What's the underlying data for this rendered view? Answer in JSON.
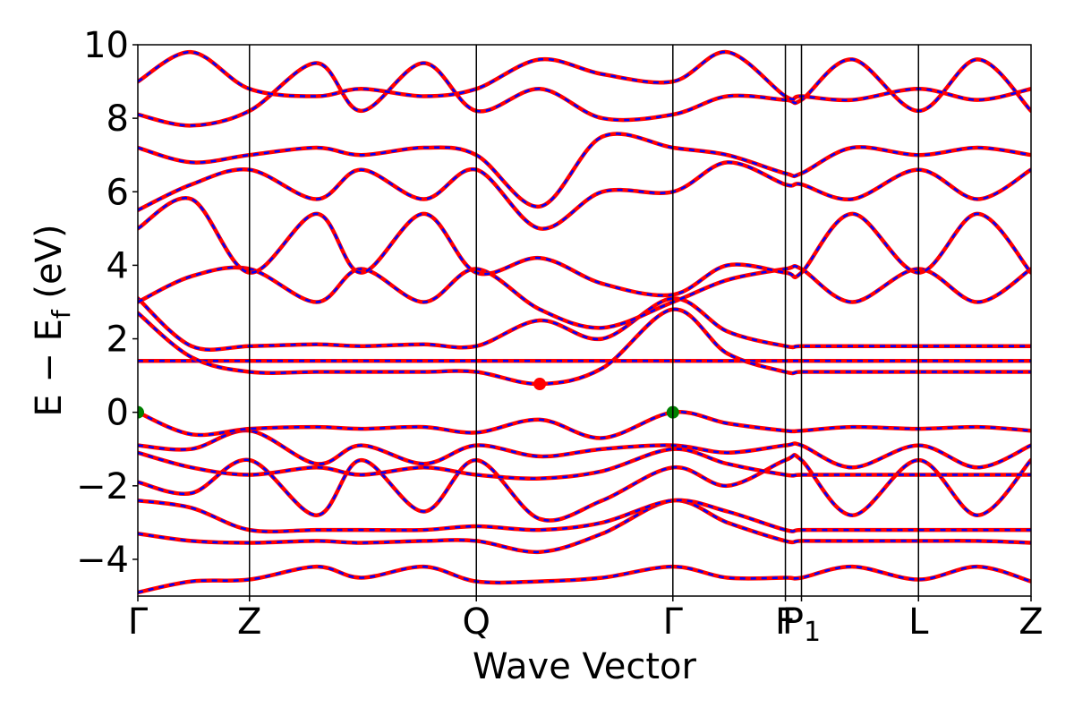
{
  "chart_data": {
    "type": "line",
    "title": "",
    "xlabel": "Wave Vector",
    "ylabel": "E − E_f (eV)",
    "ylabel_main": "E − E",
    "ylabel_sub": "f",
    "ylabel_unit": " (eV)",
    "ylim": [
      -5,
      10
    ],
    "yticks": [
      -4,
      -2,
      0,
      2,
      4,
      6,
      8,
      10
    ],
    "ytick_labels": [
      "−4",
      "−2",
      "0",
      "2",
      "4",
      "6",
      "8",
      "10"
    ],
    "xlim": [
      0,
      1
    ],
    "kpath_ticks": [
      {
        "x": 0.0,
        "label": "Γ"
      },
      {
        "x": 0.125,
        "label": "Z"
      },
      {
        "x": 0.379,
        "label": "Q"
      },
      {
        "x": 0.599,
        "label": "Γ"
      },
      {
        "x": 0.725,
        "label": "F"
      },
      {
        "x": 0.743,
        "label": "P",
        "sub": "1"
      },
      {
        "x": 0.874,
        "label": "L"
      },
      {
        "x": 1.0,
        "label": "Z"
      }
    ],
    "grid": false,
    "colors": {
      "band_solid": "#ff0000",
      "band_dashed": "#0000ff",
      "vbm_marker": "#008000",
      "cbm_marker": "#ff0000"
    },
    "markers": [
      {
        "name": "VBM",
        "x": 0.0,
        "y": 0.0,
        "color": "#008000"
      },
      {
        "name": "VBM",
        "x": 0.599,
        "y": 0.0,
        "color": "#008000"
      },
      {
        "name": "CBM",
        "x": 0.45,
        "y": 0.77,
        "color": "#ff0000"
      }
    ],
    "series": [
      {
        "x": [
          0,
          0.06,
          0.125,
          0.2,
          0.25,
          0.32,
          0.379,
          0.45,
          0.52,
          0.599,
          0.66,
          0.725,
          0.743,
          0.8,
          0.874,
          0.94,
          1.0
        ],
        "y": [
          -4.9,
          -4.6,
          -4.55,
          -4.2,
          -4.5,
          -4.2,
          -4.6,
          -4.6,
          -4.5,
          -4.2,
          -4.5,
          -4.5,
          -4.5,
          -4.2,
          -4.55,
          -4.2,
          -4.6
        ]
      },
      {
        "x": [
          0,
          0.06,
          0.125,
          0.2,
          0.25,
          0.32,
          0.379,
          0.45,
          0.52,
          0.599,
          0.66,
          0.725,
          0.743,
          0.8,
          0.874,
          0.94,
          1.0
        ],
        "y": [
          -3.3,
          -3.5,
          -3.55,
          -3.5,
          -3.55,
          -3.5,
          -3.5,
          -3.8,
          -3.3,
          -2.4,
          -3.0,
          -3.5,
          -3.5,
          -3.5,
          -3.5,
          -3.5,
          -3.55
        ]
      },
      {
        "x": [
          0,
          0.06,
          0.125,
          0.2,
          0.25,
          0.32,
          0.379,
          0.45,
          0.52,
          0.599,
          0.66,
          0.725,
          0.743,
          0.8,
          0.874,
          0.94,
          1.0
        ],
        "y": [
          -2.4,
          -2.6,
          -3.2,
          -3.2,
          -3.2,
          -3.2,
          -3.1,
          -3.2,
          -3.0,
          -2.4,
          -2.7,
          -3.2,
          -3.2,
          -3.2,
          -3.2,
          -3.2,
          -3.2
        ]
      },
      {
        "x": [
          0,
          0.06,
          0.125,
          0.2,
          0.25,
          0.32,
          0.379,
          0.45,
          0.52,
          0.599,
          0.66,
          0.725,
          0.743,
          0.8,
          0.874,
          0.94,
          1.0
        ],
        "y": [
          -1.9,
          -2.2,
          -1.3,
          -2.8,
          -1.3,
          -2.7,
          -1.3,
          -2.9,
          -2.4,
          -1.5,
          -2.0,
          -1.3,
          -1.3,
          -2.8,
          -1.3,
          -2.8,
          -1.3
        ]
      },
      {
        "x": [
          0,
          0.06,
          0.125,
          0.2,
          0.25,
          0.32,
          0.379,
          0.45,
          0.52,
          0.599,
          0.66,
          0.725,
          0.743,
          0.8,
          0.874,
          0.94,
          1.0
        ],
        "y": [
          -1.1,
          -1.5,
          -1.7,
          -1.5,
          -1.7,
          -1.5,
          -1.7,
          -1.8,
          -1.6,
          -1.0,
          -1.4,
          -1.7,
          -1.7,
          -1.7,
          -1.7,
          -1.7,
          -1.7
        ]
      },
      {
        "x": [
          0,
          0.06,
          0.125,
          0.2,
          0.25,
          0.32,
          0.379,
          0.45,
          0.52,
          0.599,
          0.66,
          0.725,
          0.743,
          0.8,
          0.874,
          0.94,
          1.0
        ],
        "y": [
          -0.9,
          -1.0,
          -0.5,
          -1.4,
          -0.9,
          -1.4,
          -0.9,
          -1.2,
          -1.0,
          -0.9,
          -1.1,
          -0.9,
          -0.9,
          -1.5,
          -0.9,
          -1.5,
          -0.9
        ]
      },
      {
        "x": [
          0,
          0.06,
          0.125,
          0.2,
          0.25,
          0.32,
          0.379,
          0.45,
          0.52,
          0.599,
          0.66,
          0.725,
          0.743,
          0.8,
          0.874,
          0.94,
          1.0
        ],
        "y": [
          0.0,
          -0.6,
          -0.45,
          -0.4,
          -0.45,
          -0.4,
          -0.55,
          -0.2,
          -0.7,
          0.0,
          -0.3,
          -0.5,
          -0.5,
          -0.4,
          -0.45,
          -0.4,
          -0.5
        ]
      },
      {
        "x": [
          0,
          0.06,
          0.125,
          0.2,
          0.25,
          0.32,
          0.379,
          0.45,
          0.52,
          0.599,
          0.66,
          0.725,
          0.743,
          0.8,
          0.874,
          0.94,
          1.0
        ],
        "y": [
          1.4,
          1.4,
          1.4,
          1.4,
          1.4,
          1.4,
          1.4,
          1.4,
          1.4,
          1.4,
          1.4,
          1.4,
          1.4,
          1.4,
          1.4,
          1.4,
          1.4
        ]
      },
      {
        "x": [
          0,
          0.06,
          0.125,
          0.2,
          0.25,
          0.32,
          0.379,
          0.45,
          0.52,
          0.599,
          0.66,
          0.725,
          0.743,
          0.8,
          0.874,
          0.94,
          1.0
        ],
        "y": [
          2.7,
          1.5,
          1.1,
          1.1,
          1.1,
          1.1,
          1.1,
          0.77,
          1.2,
          2.8,
          1.6,
          1.1,
          1.1,
          1.1,
          1.1,
          1.1,
          1.1
        ]
      },
      {
        "x": [
          0,
          0.06,
          0.125,
          0.2,
          0.25,
          0.32,
          0.379,
          0.45,
          0.52,
          0.599,
          0.66,
          0.725,
          0.743,
          0.8,
          0.874,
          0.94,
          1.0
        ],
        "y": [
          3.1,
          1.8,
          1.8,
          1.85,
          1.8,
          1.85,
          1.8,
          2.5,
          2.0,
          3.1,
          2.2,
          1.8,
          1.8,
          1.8,
          1.8,
          1.8,
          1.8
        ]
      },
      {
        "x": [
          0,
          0.06,
          0.125,
          0.2,
          0.25,
          0.32,
          0.379,
          0.45,
          0.52,
          0.599,
          0.66,
          0.725,
          0.743,
          0.8,
          0.874,
          0.94,
          1.0
        ],
        "y": [
          3.0,
          3.7,
          3.9,
          3.0,
          3.9,
          3.0,
          3.9,
          2.8,
          2.3,
          3.0,
          3.6,
          3.9,
          3.9,
          3.0,
          3.9,
          3.0,
          3.9
        ]
      },
      {
        "x": [
          0,
          0.06,
          0.125,
          0.2,
          0.25,
          0.32,
          0.379,
          0.45,
          0.52,
          0.599,
          0.66,
          0.725,
          0.743,
          0.8,
          0.874,
          0.94,
          1.0
        ],
        "y": [
          5.0,
          5.8,
          3.8,
          5.4,
          3.8,
          5.4,
          3.8,
          4.2,
          3.5,
          3.2,
          4.0,
          3.8,
          3.8,
          5.4,
          3.8,
          5.4,
          3.8
        ]
      },
      {
        "x": [
          0,
          0.06,
          0.125,
          0.2,
          0.25,
          0.32,
          0.379,
          0.45,
          0.52,
          0.599,
          0.66,
          0.725,
          0.743,
          0.8,
          0.874,
          0.94,
          1.0
        ],
        "y": [
          5.5,
          6.2,
          6.6,
          5.8,
          6.6,
          5.8,
          6.6,
          5.0,
          6.0,
          6.0,
          6.8,
          6.2,
          6.2,
          5.8,
          6.6,
          5.8,
          6.6
        ]
      },
      {
        "x": [
          0,
          0.06,
          0.125,
          0.2,
          0.25,
          0.32,
          0.379,
          0.45,
          0.52,
          0.599,
          0.66,
          0.725,
          0.743,
          0.8,
          0.874,
          0.94,
          1.0
        ],
        "y": [
          7.2,
          6.8,
          7.0,
          7.2,
          7.0,
          7.2,
          7.0,
          5.6,
          7.5,
          7.2,
          7.0,
          6.5,
          6.5,
          7.2,
          7.0,
          7.2,
          7.0
        ]
      },
      {
        "x": [
          0,
          0.06,
          0.125,
          0.2,
          0.25,
          0.32,
          0.379,
          0.45,
          0.52,
          0.599,
          0.66,
          0.725,
          0.743,
          0.8,
          0.874,
          0.94,
          1.0
        ],
        "y": [
          8.1,
          7.8,
          8.2,
          9.5,
          8.2,
          9.5,
          8.2,
          8.8,
          8.0,
          8.1,
          8.6,
          8.5,
          8.5,
          9.6,
          8.2,
          9.6,
          8.2
        ]
      },
      {
        "x": [
          0,
          0.06,
          0.125,
          0.2,
          0.25,
          0.32,
          0.379,
          0.45,
          0.52,
          0.599,
          0.66,
          0.725,
          0.743,
          0.8,
          0.874,
          0.94,
          1.0
        ],
        "y": [
          9.0,
          9.8,
          8.8,
          8.6,
          8.8,
          8.6,
          8.8,
          9.6,
          9.2,
          9.0,
          9.8,
          8.6,
          8.6,
          8.5,
          8.8,
          8.5,
          8.8
        ]
      }
    ]
  }
}
